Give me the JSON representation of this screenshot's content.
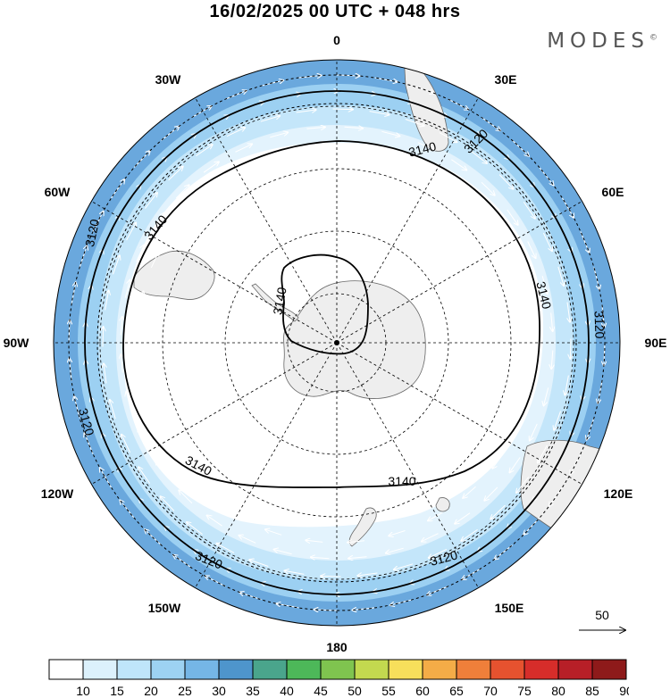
{
  "title": "16/02/2025  00 UTC  + 048 hrs",
  "brand": "MODES",
  "brand_mark": "©",
  "longitude_labels": {
    "n": "0",
    "nne": "30E",
    "ene": "60E",
    "e": "90E",
    "ese": "120E",
    "sse": "150E",
    "s": "180",
    "ssw": "150W",
    "wsw": "120W",
    "w": "90W",
    "wnw": "60W",
    "nnw": "30W"
  },
  "contours": {
    "outer_label": "3120",
    "inner_label": "3140"
  },
  "vector_reference": "50",
  "colorbar": {
    "labels": [
      "10",
      "15",
      "20",
      "25",
      "30",
      "35",
      "40",
      "45",
      "50",
      "55",
      "60",
      "65",
      "70",
      "75",
      "80",
      "85",
      "90"
    ],
    "colors": [
      "#ffffff",
      "#dcf1fc",
      "#bfe5fa",
      "#9dd2f2",
      "#75b6e6",
      "#4e95cc",
      "#4aa58c",
      "#4db859",
      "#7fc44f",
      "#c3d94f",
      "#f7df5b",
      "#f4ac47",
      "#ef7f3a",
      "#e6522f",
      "#d72d2a",
      "#b71f27",
      "#8e1a1a"
    ]
  },
  "colors": {
    "land": "#eeeeee",
    "band_outer": "#6aa8dd",
    "band_mid": "#9cd0f2",
    "band_inner": "#c4e6fa",
    "band_core": "#e3f3fd"
  },
  "icons": {
    "pole": "pole-dot-icon",
    "reference": "reference-arrow-icon"
  }
}
